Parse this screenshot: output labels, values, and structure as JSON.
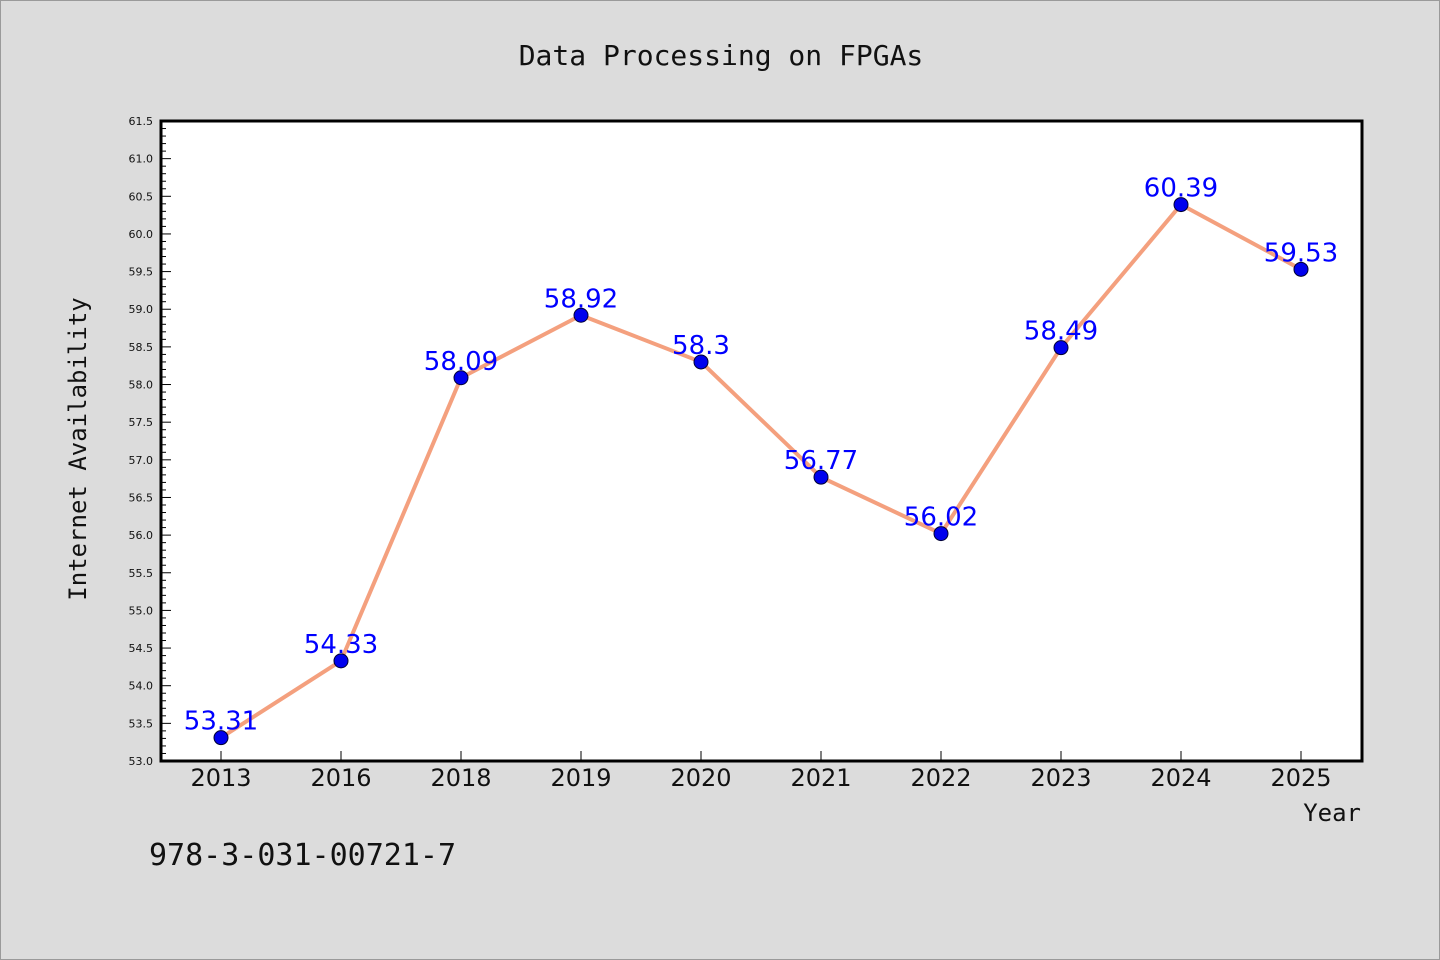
{
  "footer": {
    "text": "978-3-031-00721-7"
  },
  "chart_data": {
    "type": "line",
    "title": "Data Processing on FPGAs",
    "xlabel": "Year",
    "ylabel": "Internet Availability",
    "categories": [
      "2013",
      "2016",
      "2018",
      "2019",
      "2020",
      "2021",
      "2022",
      "2023",
      "2024",
      "2025"
    ],
    "series": [
      {
        "values": [
          53.31,
          54.33,
          58.09,
          58.92,
          58.3,
          56.77,
          56.02,
          58.49,
          60.39,
          59.53
        ],
        "labels": [
          "53.31",
          "54.33",
          "58.09",
          "58.92",
          "58.3",
          "56.77",
          "56.02",
          "58.49",
          "60.39",
          "59.53"
        ]
      }
    ],
    "ylim": [
      53.0,
      61.5
    ],
    "yticks": [
      "53.0",
      "53.5",
      "54.0",
      "54.5",
      "55.0",
      "55.5",
      "56.0",
      "56.5",
      "57.0",
      "57.5",
      "58.0",
      "58.5",
      "59.0",
      "59.5",
      "60.0",
      "60.5",
      "61.0",
      "61.5"
    ],
    "grid": false,
    "legend": "none",
    "colors": {
      "line": "#f4a07e",
      "marker": "#0000ee",
      "label": "#0000ff",
      "background": "#dcdcdc",
      "plot_area": "#ffffff"
    }
  }
}
